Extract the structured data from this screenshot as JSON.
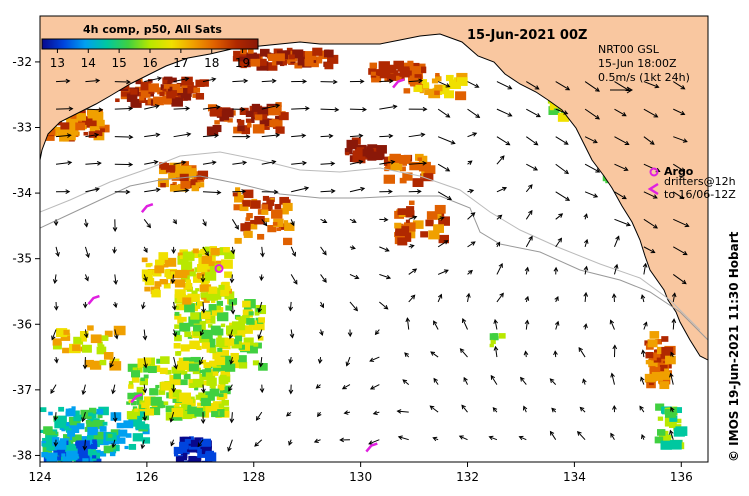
{
  "title": "15-Jun-2021 00Z",
  "colorbar": {
    "label": "4h comp, p50, All Sats",
    "ticks": [
      "13",
      "14",
      "15",
      "16",
      "17",
      "18",
      "19"
    ],
    "min": 12.5,
    "max": 19.5,
    "colors": [
      "#08088c",
      "#0044dd",
      "#00a0f0",
      "#00c8a0",
      "#40d040",
      "#b8e800",
      "#f0e000",
      "#f0a000",
      "#e06000",
      "#b02800",
      "#8a1808"
    ]
  },
  "vector_legend": {
    "line1": "NRT00 GSL",
    "line2": "15-Jun 18:00Z",
    "line3": "0.5m/s (1kt 24h)"
  },
  "legend": {
    "argo": "Argo",
    "drifters_line1": "drifters@12h",
    "drifters_line2": "to 16/06-12Z"
  },
  "credit": "© IMOS 19-Jun-2021 11:30 Hobart",
  "axes": {
    "x_ticks": [
      "124",
      "126",
      "128",
      "130",
      "132",
      "134",
      "136"
    ],
    "y_ticks": [
      "-32",
      "-33",
      "-34",
      "-35",
      "-36",
      "-37",
      "-38"
    ],
    "lon_range": [
      124,
      136.5
    ],
    "lat_range": [
      -38.1,
      -31.3
    ]
  },
  "colors": {
    "land": "#f9c7a0",
    "coast": "#000000",
    "frame": "#000000"
  },
  "markers": {
    "argo": [
      [
        127.35,
        -35.15
      ]
    ],
    "drifters": [
      [
        125.0,
        -35.6
      ],
      [
        125.8,
        -37.1
      ],
      [
        126.0,
        -34.2
      ],
      [
        130.7,
        -32.3
      ],
      [
        130.2,
        -37.85
      ]
    ]
  }
}
